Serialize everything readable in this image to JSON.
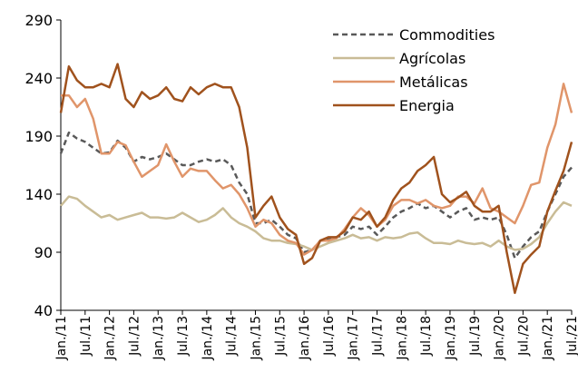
{
  "chart_data": {
    "type": "line",
    "categories": [
      "Jan./11",
      null,
      null,
      "Jul./11",
      null,
      null,
      "Jan./12",
      null,
      null,
      "Jul./12",
      null,
      null,
      "Jan./13",
      null,
      null,
      "Jul./13",
      null,
      null,
      "Jan./14",
      null,
      null,
      "Jul./14",
      null,
      null,
      "Jan./15",
      null,
      null,
      "Jul./15",
      null,
      null,
      "Jan./16",
      null,
      null,
      "Jul./16",
      null,
      null,
      "Jan./17",
      null,
      null,
      "Jul./17",
      null,
      null,
      "Jan./18",
      null,
      null,
      "Jul./18",
      null,
      null,
      "Jan./19",
      null,
      null,
      "Jul./19",
      null,
      null,
      "Jan./20",
      null,
      null,
      "Jul./20",
      null,
      null,
      "Jan./21",
      null,
      null,
      "Jul./21"
    ],
    "series": [
      {
        "name": "Commodities",
        "color": "#595959",
        "dashed": true,
        "values": [
          175,
          193,
          188,
          185,
          180,
          175,
          176,
          186,
          180,
          168,
          172,
          170,
          172,
          175,
          170,
          165,
          165,
          168,
          170,
          168,
          170,
          165,
          150,
          140,
          115,
          115,
          118,
          112,
          105,
          102,
          90,
          92,
          100,
          102,
          103,
          105,
          112,
          110,
          112,
          105,
          112,
          120,
          125,
          128,
          132,
          128,
          130,
          125,
          120,
          125,
          128,
          118,
          120,
          118,
          120,
          105,
          85,
          95,
          103,
          108,
          125,
          140,
          155,
          163
        ]
      },
      {
        "name": "Agrícolas",
        "color": "#c9bc96",
        "dashed": false,
        "values": [
          130,
          138,
          136,
          130,
          125,
          120,
          122,
          118,
          120,
          122,
          124,
          120,
          120,
          119,
          120,
          124,
          120,
          116,
          118,
          122,
          128,
          120,
          115,
          112,
          108,
          102,
          100,
          100,
          98,
          97,
          95,
          92,
          95,
          98,
          100,
          102,
          105,
          102,
          103,
          100,
          103,
          102,
          103,
          106,
          107,
          102,
          98,
          98,
          97,
          100,
          98,
          97,
          98,
          95,
          100,
          95,
          92,
          93,
          97,
          103,
          115,
          125,
          133,
          130
        ]
      },
      {
        "name": "Metálicas",
        "color": "#e0956a",
        "dashed": false,
        "values": [
          225,
          225,
          215,
          222,
          205,
          175,
          175,
          185,
          182,
          168,
          155,
          160,
          165,
          183,
          168,
          155,
          162,
          160,
          160,
          152,
          145,
          148,
          140,
          128,
          112,
          118,
          115,
          105,
          100,
          98,
          88,
          92,
          100,
          100,
          102,
          110,
          120,
          128,
          122,
          112,
          118,
          130,
          135,
          135,
          132,
          135,
          130,
          128,
          130,
          138,
          138,
          132,
          145,
          128,
          125,
          120,
          115,
          130,
          148,
          150,
          180,
          200,
          235,
          210
        ]
      },
      {
        "name": "Energia",
        "color": "#a0521d",
        "dashed": false,
        "values": [
          210,
          250,
          238,
          232,
          232,
          235,
          232,
          252,
          222,
          215,
          228,
          222,
          225,
          232,
          222,
          220,
          232,
          226,
          232,
          235,
          232,
          232,
          215,
          180,
          120,
          130,
          138,
          120,
          110,
          105,
          80,
          85,
          100,
          103,
          103,
          108,
          120,
          118,
          125,
          112,
          120,
          135,
          145,
          150,
          160,
          165,
          172,
          140,
          133,
          137,
          142,
          130,
          125,
          125,
          130,
          90,
          55,
          80,
          88,
          95,
          125,
          143,
          160,
          185
        ]
      }
    ],
    "ylim": [
      40,
      290
    ],
    "yticks": [
      40,
      90,
      140,
      190,
      240,
      290
    ],
    "legend": "top-right"
  }
}
